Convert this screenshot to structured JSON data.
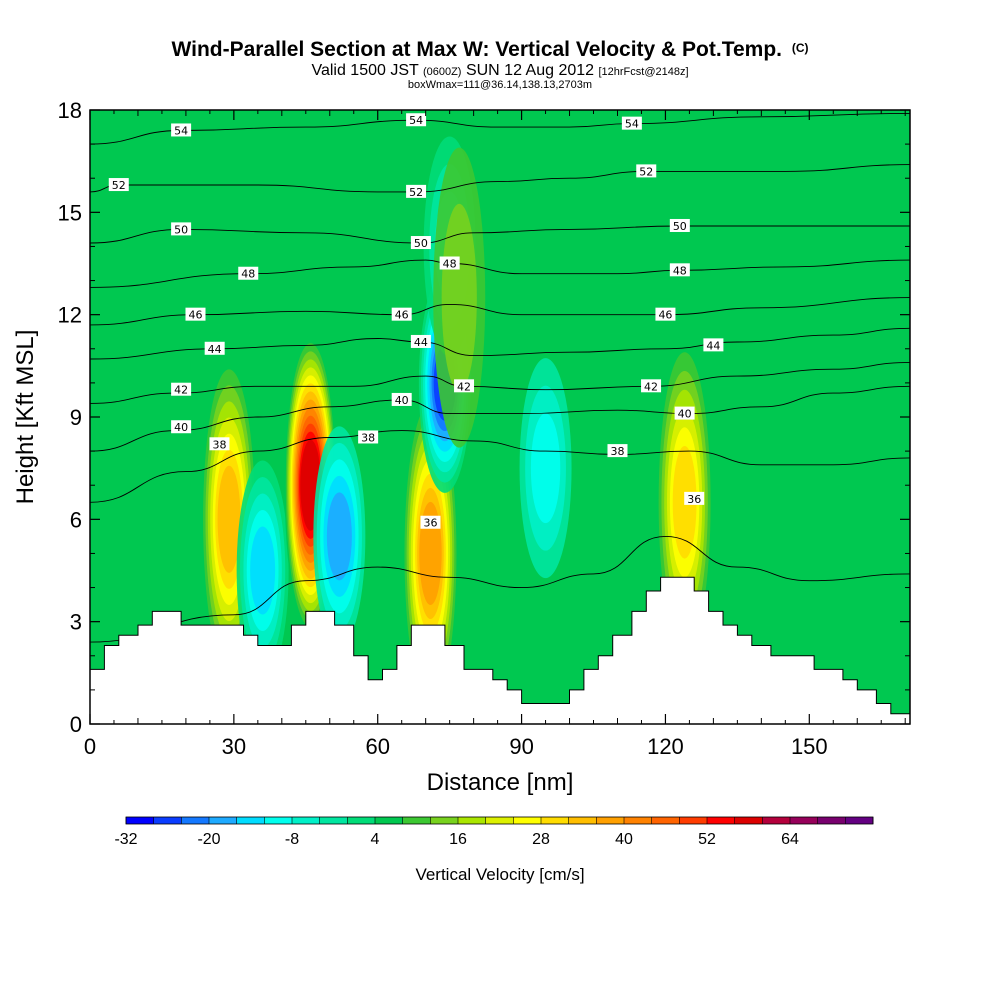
{
  "header": {
    "title_main": "Wind-Parallel Section at Max W: Vertical Velocity & Pot.Temp.",
    "title_mark": "(C)",
    "valid_prefix": "Valid 1500 JST",
    "valid_utc": "(0600Z)",
    "valid_date": "SUN 12 Aug 2012",
    "forecast": "[12hrFcst@2148z]",
    "box_info": "boxWmax=111@36.14,138.13,2703m"
  },
  "chart_data": {
    "type": "heatmap",
    "xlabel": "Distance [nm]",
    "ylabel": "Height [Kft MSL]",
    "xlim": [
      0,
      171
    ],
    "ylim": [
      0,
      18
    ],
    "x_ticks": [
      "0",
      "30",
      "60",
      "90",
      "120",
      "150"
    ],
    "y_ticks": [
      "0",
      "3",
      "6",
      "9",
      "12",
      "15",
      "18"
    ],
    "background_w": 4,
    "w_features": [
      {
        "x": 29,
        "z": 6.0,
        "w": 32
      },
      {
        "x": 36,
        "z": 4.5,
        "w": -14
      },
      {
        "x": 46,
        "z": 7.0,
        "w": 58
      },
      {
        "x": 52,
        "z": 5.5,
        "w": -17
      },
      {
        "x": 71,
        "z": 5.0,
        "w": 36
      },
      {
        "x": 74,
        "z": 10.0,
        "w": -26
      },
      {
        "x": 124,
        "z": 6.5,
        "w": 28
      },
      {
        "x": 95,
        "z": 7.5,
        "w": -9
      },
      {
        "x": 75,
        "z": 14.0,
        "w": -7
      },
      {
        "x": 77,
        "z": 12.5,
        "w": 12
      }
    ],
    "terrain": [
      [
        0,
        1.6
      ],
      [
        3,
        1.6
      ],
      [
        3,
        2.3
      ],
      [
        6,
        2.3
      ],
      [
        6,
        2.6
      ],
      [
        10,
        2.6
      ],
      [
        10,
        2.9
      ],
      [
        13,
        2.9
      ],
      [
        13,
        3.3
      ],
      [
        19,
        3.3
      ],
      [
        19,
        2.9
      ],
      [
        32,
        2.9
      ],
      [
        32,
        2.6
      ],
      [
        35,
        2.6
      ],
      [
        35,
        2.3
      ],
      [
        42,
        2.3
      ],
      [
        42,
        2.9
      ],
      [
        45,
        2.9
      ],
      [
        45,
        3.3
      ],
      [
        51,
        3.3
      ],
      [
        51,
        2.9
      ],
      [
        55,
        2.9
      ],
      [
        55,
        2.0
      ],
      [
        58,
        2.0
      ],
      [
        58,
        1.3
      ],
      [
        61,
        1.3
      ],
      [
        61,
        1.6
      ],
      [
        64,
        1.6
      ],
      [
        64,
        2.3
      ],
      [
        67,
        2.3
      ],
      [
        67,
        2.9
      ],
      [
        74,
        2.9
      ],
      [
        74,
        2.3
      ],
      [
        78,
        2.3
      ],
      [
        78,
        1.6
      ],
      [
        84,
        1.6
      ],
      [
        84,
        1.3
      ],
      [
        87,
        1.3
      ],
      [
        87,
        1.0
      ],
      [
        90,
        1.0
      ],
      [
        90,
        0.6
      ],
      [
        100,
        0.6
      ],
      [
        100,
        1.0
      ],
      [
        103,
        1.0
      ],
      [
        103,
        1.6
      ],
      [
        106,
        1.6
      ],
      [
        106,
        2.0
      ],
      [
        109,
        2.0
      ],
      [
        109,
        2.6
      ],
      [
        113,
        2.6
      ],
      [
        113,
        3.3
      ],
      [
        116,
        3.3
      ],
      [
        116,
        3.9
      ],
      [
        119,
        3.9
      ],
      [
        119,
        4.3
      ],
      [
        126,
        4.3
      ],
      [
        126,
        3.9
      ],
      [
        129,
        3.9
      ],
      [
        129,
        3.3
      ],
      [
        132,
        3.3
      ],
      [
        132,
        2.9
      ],
      [
        135,
        2.9
      ],
      [
        135,
        2.6
      ],
      [
        138,
        2.6
      ],
      [
        138,
        2.3
      ],
      [
        142,
        2.3
      ],
      [
        142,
        2.0
      ],
      [
        151,
        2.0
      ],
      [
        151,
        1.6
      ],
      [
        157,
        1.6
      ],
      [
        157,
        1.3
      ],
      [
        160,
        1.3
      ],
      [
        160,
        1.0
      ],
      [
        164,
        1.0
      ],
      [
        164,
        0.6
      ],
      [
        167,
        0.6
      ],
      [
        167,
        0.3
      ],
      [
        171,
        0.3
      ]
    ],
    "contour_labels": [
      {
        "text": "54",
        "x": 19,
        "z": 17.4
      },
      {
        "text": "52",
        "x": 6,
        "z": 15.8
      },
      {
        "text": "50",
        "x": 19,
        "z": 14.5
      },
      {
        "text": "48",
        "x": 33,
        "z": 13.2
      },
      {
        "text": "46",
        "x": 22,
        "z": 12.0
      },
      {
        "text": "44",
        "x": 26,
        "z": 11.0
      },
      {
        "text": "42",
        "x": 19,
        "z": 9.8
      },
      {
        "text": "40",
        "x": 19,
        "z": 8.7
      },
      {
        "text": "38",
        "x": 27,
        "z": 8.2
      },
      {
        "text": "54",
        "x": 68,
        "z": 17.7
      },
      {
        "text": "52",
        "x": 68,
        "z": 15.6
      },
      {
        "text": "50",
        "x": 69,
        "z": 14.1
      },
      {
        "text": "48",
        "x": 75,
        "z": 13.5
      },
      {
        "text": "46",
        "x": 65,
        "z": 12.0
      },
      {
        "text": "44",
        "x": 69,
        "z": 11.2
      },
      {
        "text": "42",
        "x": 78,
        "z": 9.9
      },
      {
        "text": "40",
        "x": 65,
        "z": 9.5
      },
      {
        "text": "38",
        "x": 58,
        "z": 8.4
      },
      {
        "text": "36",
        "x": 71,
        "z": 5.9
      },
      {
        "text": "54",
        "x": 113,
        "z": 17.6
      },
      {
        "text": "52",
        "x": 116,
        "z": 16.2
      },
      {
        "text": "50",
        "x": 123,
        "z": 14.6
      },
      {
        "text": "48",
        "x": 123,
        "z": 13.3
      },
      {
        "text": "46",
        "x": 120,
        "z": 12.0
      },
      {
        "text": "44",
        "x": 130,
        "z": 11.1
      },
      {
        "text": "42",
        "x": 117,
        "z": 9.9
      },
      {
        "text": "40",
        "x": 124,
        "z": 9.1
      },
      {
        "text": "38",
        "x": 110,
        "z": 8.0
      },
      {
        "text": "36",
        "x": 126,
        "z": 6.6
      }
    ],
    "contours": [
      {
        "level": 36,
        "points": [
          [
            0,
            2.4
          ],
          [
            30,
            3.2
          ],
          [
            45,
            4.2
          ],
          [
            60,
            4.6
          ],
          [
            75,
            4.3
          ],
          [
            90,
            4.0
          ],
          [
            105,
            4.4
          ],
          [
            120,
            5.5
          ],
          [
            135,
            4.6
          ],
          [
            150,
            4.2
          ],
          [
            171,
            4.4
          ]
        ]
      },
      {
        "level": 38,
        "points": [
          [
            0,
            6.5
          ],
          [
            20,
            7.4
          ],
          [
            35,
            8.0
          ],
          [
            50,
            8.4
          ],
          [
            65,
            8.6
          ],
          [
            80,
            8.3
          ],
          [
            95,
            8.0
          ],
          [
            110,
            7.9
          ],
          [
            125,
            8.0
          ],
          [
            140,
            7.6
          ],
          [
            155,
            7.6
          ],
          [
            171,
            7.8
          ]
        ]
      },
      {
        "level": 40,
        "points": [
          [
            0,
            8.0
          ],
          [
            18,
            8.6
          ],
          [
            35,
            9.0
          ],
          [
            50,
            9.3
          ],
          [
            65,
            9.5
          ],
          [
            75,
            9.1
          ],
          [
            90,
            9.1
          ],
          [
            110,
            9.2
          ],
          [
            125,
            9.1
          ],
          [
            140,
            9.3
          ],
          [
            155,
            9.7
          ],
          [
            171,
            9.9
          ]
        ]
      },
      {
        "level": 42,
        "points": [
          [
            0,
            9.4
          ],
          [
            18,
            9.7
          ],
          [
            35,
            9.9
          ],
          [
            55,
            9.9
          ],
          [
            70,
            10.2
          ],
          [
            78,
            9.9
          ],
          [
            95,
            9.8
          ],
          [
            117,
            9.9
          ],
          [
            135,
            10.2
          ],
          [
            155,
            10.4
          ],
          [
            171,
            10.6
          ]
        ]
      },
      {
        "level": 44,
        "points": [
          [
            0,
            10.7
          ],
          [
            26,
            11.0
          ],
          [
            45,
            11.1
          ],
          [
            60,
            11.3
          ],
          [
            69,
            11.2
          ],
          [
            80,
            10.8
          ],
          [
            100,
            10.9
          ],
          [
            120,
            11.0
          ],
          [
            135,
            11.2
          ],
          [
            155,
            11.4
          ],
          [
            171,
            11.6
          ]
        ]
      },
      {
        "level": 46,
        "points": [
          [
            0,
            11.7
          ],
          [
            22,
            12.0
          ],
          [
            45,
            12.1
          ],
          [
            65,
            12.0
          ],
          [
            75,
            12.3
          ],
          [
            90,
            12.0
          ],
          [
            105,
            12.0
          ],
          [
            120,
            12.0
          ],
          [
            140,
            12.2
          ],
          [
            171,
            12.5
          ]
        ]
      },
      {
        "level": 48,
        "points": [
          [
            0,
            12.8
          ],
          [
            33,
            13.2
          ],
          [
            55,
            13.4
          ],
          [
            70,
            13.6
          ],
          [
            75,
            13.5
          ],
          [
            90,
            13.2
          ],
          [
            110,
            13.2
          ],
          [
            123,
            13.3
          ],
          [
            145,
            13.4
          ],
          [
            171,
            13.6
          ]
        ]
      },
      {
        "level": 50,
        "points": [
          [
            0,
            14.1
          ],
          [
            19,
            14.5
          ],
          [
            45,
            14.4
          ],
          [
            69,
            14.1
          ],
          [
            80,
            14.4
          ],
          [
            100,
            14.5
          ],
          [
            123,
            14.6
          ],
          [
            150,
            14.6
          ],
          [
            171,
            14.6
          ]
        ]
      },
      {
        "level": 52,
        "points": [
          [
            0,
            15.6
          ],
          [
            6,
            15.8
          ],
          [
            35,
            15.8
          ],
          [
            60,
            15.6
          ],
          [
            68,
            15.6
          ],
          [
            85,
            15.9
          ],
          [
            100,
            16.0
          ],
          [
            116,
            16.2
          ],
          [
            145,
            16.2
          ],
          [
            171,
            16.4
          ]
        ]
      },
      {
        "level": 54,
        "points": [
          [
            0,
            17.0
          ],
          [
            19,
            17.4
          ],
          [
            45,
            17.5
          ],
          [
            68,
            17.7
          ],
          [
            85,
            17.5
          ],
          [
            100,
            17.5
          ],
          [
            113,
            17.6
          ],
          [
            140,
            17.8
          ],
          [
            171,
            17.9
          ]
        ]
      }
    ],
    "colorbar": {
      "label": "Vertical Velocity [cm/s]",
      "levels": [
        -32,
        -28,
        -24,
        -20,
        -16,
        -12,
        -8,
        -4,
        0,
        4,
        8,
        12,
        16,
        20,
        24,
        28,
        32,
        36,
        40,
        44,
        48,
        52,
        56,
        60,
        64,
        68,
        72
      ],
      "tick_labels": [
        "-32",
        "-20",
        "-8",
        "4",
        "16",
        "28",
        "40",
        "52",
        "64"
      ],
      "colors": [
        "#0000ff",
        "#0a3cff",
        "#1478ff",
        "#1eaaff",
        "#00dcff",
        "#00ffee",
        "#00f0c8",
        "#00e6a0",
        "#00dc78",
        "#00c850",
        "#3cc832",
        "#78d21e",
        "#aae600",
        "#dcf000",
        "#ffff00",
        "#ffdc00",
        "#ffbe00",
        "#ffa000",
        "#ff8200",
        "#ff6400",
        "#ff3c00",
        "#ff0000",
        "#dc0000",
        "#b4003c",
        "#96005a",
        "#78006e",
        "#640082"
      ]
    }
  }
}
